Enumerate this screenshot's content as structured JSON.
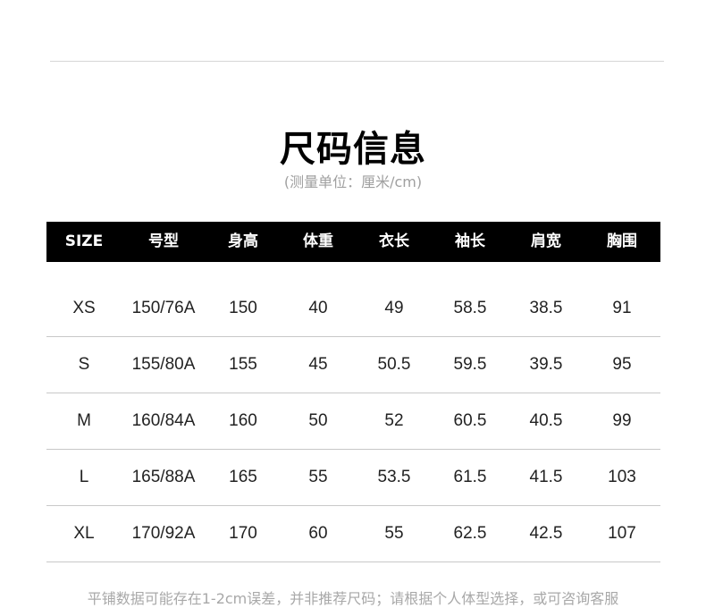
{
  "title": "尺码信息",
  "subtitle": "(测量单位：厘米/cm)",
  "table": {
    "headers": [
      "SIZE",
      "号型",
      "身高",
      "体重",
      "衣长",
      "袖长",
      "肩宽",
      "胸围"
    ],
    "rows": [
      [
        "XS",
        "150/76A",
        "150",
        "40",
        "49",
        "58.5",
        "38.5",
        "91"
      ],
      [
        "S",
        "155/80A",
        "155",
        "45",
        "50.5",
        "59.5",
        "39.5",
        "95"
      ],
      [
        "M",
        "160/84A",
        "160",
        "50",
        "52",
        "60.5",
        "40.5",
        "99"
      ],
      [
        "L",
        "165/88A",
        "165",
        "55",
        "53.5",
        "61.5",
        "41.5",
        "103"
      ],
      [
        "XL",
        "170/92A",
        "170",
        "60",
        "55",
        "62.5",
        "42.5",
        "107"
      ]
    ]
  },
  "note": "平铺数据可能存在1-2cm误差，并非推荐尺码；请根据个人体型选择，或可咨询客服"
}
